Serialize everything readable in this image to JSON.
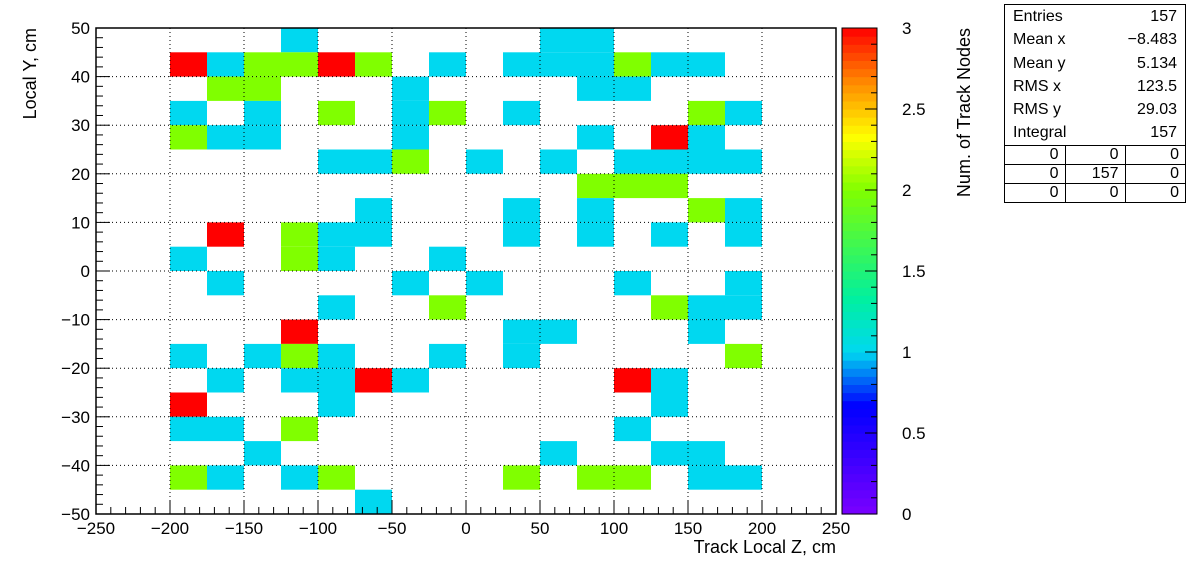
{
  "chart_data": {
    "type": "heatmap",
    "xlabel": "Track Local Z, cm",
    "ylabel": "Local Y, cm",
    "zlabel": "Num. of Track Nodes",
    "xlim": [
      -250,
      250
    ],
    "ylim": [
      -50,
      50
    ],
    "zlim": [
      0,
      3
    ],
    "x_ticks": [
      -250,
      -200,
      -150,
      -100,
      -50,
      0,
      50,
      100,
      150,
      200,
      250
    ],
    "y_ticks": [
      -50,
      -40,
      -30,
      -20,
      -10,
      0,
      10,
      20,
      30,
      40,
      50
    ],
    "z_ticks": [
      0,
      0.5,
      1,
      1.5,
      2,
      2.5,
      3
    ],
    "grid": true,
    "bin_width": [
      25,
      5
    ],
    "bins": [
      {
        "x": -125,
        "y": 45,
        "z": 1
      },
      {
        "x": 50,
        "y": 45,
        "z": 1
      },
      {
        "x": 75,
        "y": 45,
        "z": 1
      },
      {
        "x": -200,
        "y": 40,
        "z": 3
      },
      {
        "x": -175,
        "y": 40,
        "z": 1
      },
      {
        "x": -150,
        "y": 40,
        "z": 2
      },
      {
        "x": -125,
        "y": 40,
        "z": 2
      },
      {
        "x": -100,
        "y": 40,
        "z": 3
      },
      {
        "x": -75,
        "y": 40,
        "z": 2
      },
      {
        "x": -25,
        "y": 40,
        "z": 1
      },
      {
        "x": 25,
        "y": 40,
        "z": 1
      },
      {
        "x": 50,
        "y": 40,
        "z": 1
      },
      {
        "x": 75,
        "y": 40,
        "z": 1
      },
      {
        "x": 100,
        "y": 40,
        "z": 2
      },
      {
        "x": 125,
        "y": 40,
        "z": 1
      },
      {
        "x": 150,
        "y": 40,
        "z": 1
      },
      {
        "x": -175,
        "y": 35,
        "z": 2
      },
      {
        "x": -150,
        "y": 35,
        "z": 2
      },
      {
        "x": -50,
        "y": 35,
        "z": 1
      },
      {
        "x": 75,
        "y": 35,
        "z": 1
      },
      {
        "x": 100,
        "y": 35,
        "z": 1
      },
      {
        "x": -200,
        "y": 30,
        "z": 1
      },
      {
        "x": -150,
        "y": 30,
        "z": 1
      },
      {
        "x": -100,
        "y": 30,
        "z": 2
      },
      {
        "x": -50,
        "y": 30,
        "z": 1
      },
      {
        "x": -25,
        "y": 30,
        "z": 2
      },
      {
        "x": 25,
        "y": 30,
        "z": 1
      },
      {
        "x": 150,
        "y": 30,
        "z": 2
      },
      {
        "x": 175,
        "y": 30,
        "z": 1
      },
      {
        "x": -200,
        "y": 25,
        "z": 2
      },
      {
        "x": -175,
        "y": 25,
        "z": 1
      },
      {
        "x": -150,
        "y": 25,
        "z": 1
      },
      {
        "x": -50,
        "y": 25,
        "z": 1
      },
      {
        "x": 75,
        "y": 25,
        "z": 1
      },
      {
        "x": 125,
        "y": 25,
        "z": 3
      },
      {
        "x": 150,
        "y": 25,
        "z": 1
      },
      {
        "x": -100,
        "y": 20,
        "z": 1
      },
      {
        "x": -75,
        "y": 20,
        "z": 1
      },
      {
        "x": -50,
        "y": 20,
        "z": 2
      },
      {
        "x": 0,
        "y": 20,
        "z": 1
      },
      {
        "x": 50,
        "y": 20,
        "z": 1
      },
      {
        "x": 100,
        "y": 20,
        "z": 1
      },
      {
        "x": 125,
        "y": 20,
        "z": 1
      },
      {
        "x": 150,
        "y": 20,
        "z": 1
      },
      {
        "x": 175,
        "y": 20,
        "z": 1
      },
      {
        "x": 75,
        "y": 15,
        "z": 2
      },
      {
        "x": 100,
        "y": 15,
        "z": 2
      },
      {
        "x": 125,
        "y": 15,
        "z": 2
      },
      {
        "x": -75,
        "y": 10,
        "z": 1
      },
      {
        "x": 25,
        "y": 10,
        "z": 1
      },
      {
        "x": 75,
        "y": 10,
        "z": 1
      },
      {
        "x": 150,
        "y": 10,
        "z": 2
      },
      {
        "x": 175,
        "y": 10,
        "z": 1
      },
      {
        "x": -175,
        "y": 5,
        "z": 3
      },
      {
        "x": -125,
        "y": 5,
        "z": 2
      },
      {
        "x": -100,
        "y": 5,
        "z": 1
      },
      {
        "x": -75,
        "y": 5,
        "z": 1
      },
      {
        "x": 25,
        "y": 5,
        "z": 1
      },
      {
        "x": 75,
        "y": 5,
        "z": 1
      },
      {
        "x": 125,
        "y": 5,
        "z": 1
      },
      {
        "x": 175,
        "y": 5,
        "z": 1
      },
      {
        "x": -200,
        "y": 0,
        "z": 1
      },
      {
        "x": -125,
        "y": 0,
        "z": 2
      },
      {
        "x": -100,
        "y": 0,
        "z": 1
      },
      {
        "x": -25,
        "y": 0,
        "z": 1
      },
      {
        "x": -175,
        "y": -5,
        "z": 1
      },
      {
        "x": -50,
        "y": -5,
        "z": 1
      },
      {
        "x": 0,
        "y": -5,
        "z": 1
      },
      {
        "x": 100,
        "y": -5,
        "z": 1
      },
      {
        "x": 175,
        "y": -5,
        "z": 1
      },
      {
        "x": -100,
        "y": -10,
        "z": 1
      },
      {
        "x": -25,
        "y": -10,
        "z": 2
      },
      {
        "x": 125,
        "y": -10,
        "z": 2
      },
      {
        "x": 150,
        "y": -10,
        "z": 1
      },
      {
        "x": 175,
        "y": -10,
        "z": 1
      },
      {
        "x": -125,
        "y": -15,
        "z": 3
      },
      {
        "x": 25,
        "y": -15,
        "z": 1
      },
      {
        "x": 50,
        "y": -15,
        "z": 1
      },
      {
        "x": 150,
        "y": -15,
        "z": 1
      },
      {
        "x": -200,
        "y": -20,
        "z": 1
      },
      {
        "x": -150,
        "y": -20,
        "z": 1
      },
      {
        "x": -125,
        "y": -20,
        "z": 2
      },
      {
        "x": -100,
        "y": -20,
        "z": 1
      },
      {
        "x": -25,
        "y": -20,
        "z": 1
      },
      {
        "x": 25,
        "y": -20,
        "z": 1
      },
      {
        "x": 175,
        "y": -20,
        "z": 2
      },
      {
        "x": -175,
        "y": -25,
        "z": 1
      },
      {
        "x": -125,
        "y": -25,
        "z": 1
      },
      {
        "x": -100,
        "y": -25,
        "z": 1
      },
      {
        "x": -75,
        "y": -25,
        "z": 3
      },
      {
        "x": -50,
        "y": -25,
        "z": 1
      },
      {
        "x": 100,
        "y": -25,
        "z": 3
      },
      {
        "x": 125,
        "y": -25,
        "z": 1
      },
      {
        "x": -200,
        "y": -30,
        "z": 3
      },
      {
        "x": -100,
        "y": -30,
        "z": 1
      },
      {
        "x": 125,
        "y": -30,
        "z": 1
      },
      {
        "x": -200,
        "y": -35,
        "z": 1
      },
      {
        "x": -175,
        "y": -35,
        "z": 1
      },
      {
        "x": -125,
        "y": -35,
        "z": 2
      },
      {
        "x": 100,
        "y": -35,
        "z": 1
      },
      {
        "x": -150,
        "y": -40,
        "z": 1
      },
      {
        "x": 50,
        "y": -40,
        "z": 1
      },
      {
        "x": 125,
        "y": -40,
        "z": 1
      },
      {
        "x": 150,
        "y": -40,
        "z": 1
      },
      {
        "x": -200,
        "y": -45,
        "z": 2
      },
      {
        "x": -175,
        "y": -45,
        "z": 1
      },
      {
        "x": -125,
        "y": -45,
        "z": 1
      },
      {
        "x": -100,
        "y": -45,
        "z": 2
      },
      {
        "x": 25,
        "y": -45,
        "z": 2
      },
      {
        "x": 75,
        "y": -45,
        "z": 2
      },
      {
        "x": 100,
        "y": -45,
        "z": 2
      },
      {
        "x": 150,
        "y": -45,
        "z": 1
      },
      {
        "x": 175,
        "y": -45,
        "z": 1
      },
      {
        "x": -75,
        "y": -50,
        "z": 1
      }
    ]
  },
  "stats": {
    "rows": [
      {
        "label": "Entries",
        "value": "157"
      },
      {
        "label": "Mean x",
        "value": "−8.483"
      },
      {
        "label": "Mean y",
        "value": "5.134"
      },
      {
        "label": "RMS x",
        "value": "123.5"
      },
      {
        "label": "RMS y",
        "value": "29.03"
      },
      {
        "label": "Integral",
        "value": "157"
      }
    ],
    "grid": [
      [
        "0",
        "0",
        "0"
      ],
      [
        "0",
        "157",
        "0"
      ],
      [
        "0",
        "0",
        "0"
      ]
    ]
  }
}
